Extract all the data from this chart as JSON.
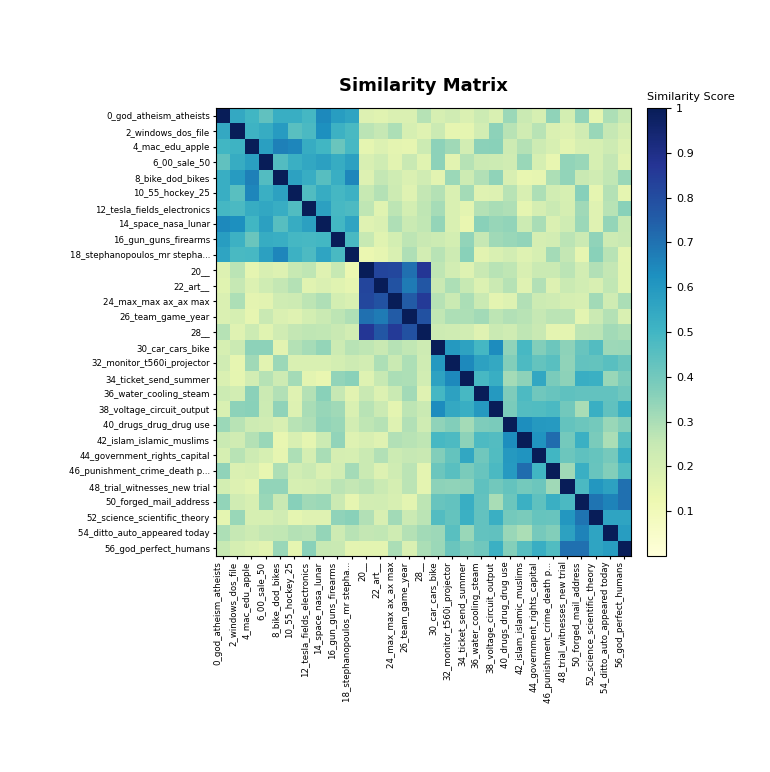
{
  "labels": [
    "0_god_atheism_atheists",
    "2_windows_dos_file",
    "4_mac_edu_apple",
    "6_00_sale_50",
    "8_bike_dod_bikes",
    "10_55_hockey_25",
    "12_tesla_fields_electronics",
    "14_space_nasa_lunar",
    "16_gun_guns_firearms",
    "18_stephanopoulos_mr stepha...",
    "20__",
    "22_art__",
    "24_max_max ax_ax max",
    "26_team_game_year",
    "28__",
    "30_car_cars_bike",
    "32_monitor_t560i_projector",
    "34_ticket_send_summer",
    "36_water_cooling_steam",
    "38_voltage_circuit_output",
    "40_drugs_drug_drug use",
    "42_islam_islamic_muslims",
    "44_government_rights_capital",
    "46_punishment_crime_death p...",
    "48_trial_witnesses_new trial",
    "50_forged_mail_address",
    "52_science_scientific_theory",
    "54_ditto_auto_appeared today",
    "56_god_perfect_humans"
  ],
  "title": "Similarity Matrix",
  "colorbar_label": "Similarity Score",
  "colormap": "YlGnBu",
  "vmin": 0.0,
  "vmax": 1.0,
  "figwidth": 7.7,
  "figheight": 7.72,
  "dpi": 100
}
